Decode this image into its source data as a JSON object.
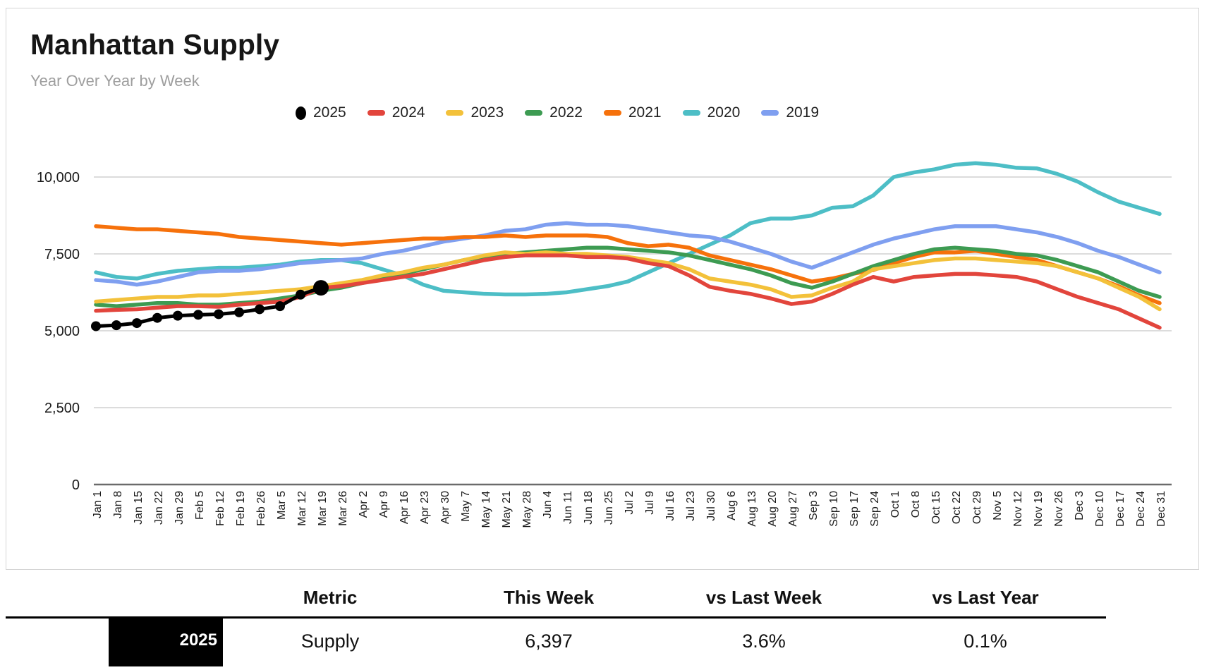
{
  "card": {
    "title": "Manhattan Supply",
    "subtitle": "Year Over Year by Week"
  },
  "chart_data": {
    "type": "line",
    "title": "Manhattan Supply",
    "subtitle": "Year Over Year by Week",
    "grid": true,
    "legend_position": "top",
    "ylim": [
      0,
      11000
    ],
    "y_ticks": [
      0,
      2500,
      5000,
      7500,
      10000
    ],
    "y_tick_labels": [
      "0",
      "2,500",
      "5,000",
      "7,500",
      "10,000"
    ],
    "x_labels": [
      "Jan 1",
      "Jan 8",
      "Jan 15",
      "Jan 22",
      "Jan 29",
      "Feb 5",
      "Feb 12",
      "Feb 19",
      "Feb 26",
      "Mar 5",
      "Mar 12",
      "Mar 19",
      "Mar 26",
      "Apr 2",
      "Apr 9",
      "Apr 16",
      "Apr 23",
      "Apr 30",
      "May 7",
      "May 14",
      "May 21",
      "May 28",
      "Jun 4",
      "Jun 11",
      "Jun 18",
      "Jun 25",
      "Jul 2",
      "Jul 9",
      "Jul 16",
      "Jul 23",
      "Jul 30",
      "Aug 6",
      "Aug 13",
      "Aug 20",
      "Aug 27",
      "Sep 3",
      "Sep 10",
      "Sep 17",
      "Sep 24",
      "Oct 1",
      "Oct 8",
      "Oct 15",
      "Oct 22",
      "Oct 29",
      "Nov 5",
      "Nov 12",
      "Nov 19",
      "Nov 26",
      "Dec 3",
      "Dec 10",
      "Dec 17",
      "Dec 24",
      "Dec 31"
    ],
    "series": [
      {
        "name": "2025",
        "color": "#000000",
        "marker": "circle",
        "values": [
          5150,
          5180,
          5250,
          5420,
          5490,
          5520,
          5540,
          5600,
          5700,
          5800,
          6175,
          6397
        ]
      },
      {
        "name": "2024",
        "color": "#e2453c",
        "values": [
          5650,
          5680,
          5700,
          5750,
          5800,
          5800,
          5780,
          5850,
          5900,
          5950,
          6100,
          6390,
          6450,
          6550,
          6650,
          6750,
          6850,
          7000,
          7150,
          7300,
          7400,
          7450,
          7450,
          7450,
          7400,
          7400,
          7350,
          7200,
          7100,
          6800,
          6430,
          6300,
          6200,
          6050,
          5870,
          5950,
          6200,
          6500,
          6750,
          6600,
          6750,
          6800,
          6850,
          6850,
          6800,
          6750,
          6600,
          6350,
          6100,
          5900,
          5700,
          5400,
          5100
        ]
      },
      {
        "name": "2023",
        "color": "#f3c13a",
        "values": [
          5950,
          6000,
          6050,
          6100,
          6100,
          6150,
          6150,
          6200,
          6250,
          6300,
          6350,
          6450,
          6550,
          6650,
          6800,
          6900,
          7050,
          7150,
          7300,
          7450,
          7550,
          7500,
          7550,
          7500,
          7500,
          7450,
          7400,
          7300,
          7200,
          7000,
          6700,
          6600,
          6500,
          6350,
          6100,
          6150,
          6400,
          6600,
          7000,
          7100,
          7200,
          7300,
          7350,
          7350,
          7300,
          7250,
          7200,
          7100,
          6900,
          6700,
          6400,
          6100,
          5700
        ]
      },
      {
        "name": "2022",
        "color": "#3d9b52",
        "values": [
          5850,
          5800,
          5850,
          5900,
          5900,
          5850,
          5850,
          5900,
          5950,
          6050,
          6150,
          6300,
          6400,
          6550,
          6700,
          6850,
          7000,
          7150,
          7300,
          7400,
          7500,
          7550,
          7600,
          7650,
          7700,
          7700,
          7650,
          7600,
          7550,
          7450,
          7300,
          7150,
          7000,
          6800,
          6550,
          6400,
          6600,
          6850,
          7100,
          7300,
          7500,
          7650,
          7700,
          7650,
          7600,
          7500,
          7450,
          7300,
          7100,
          6900,
          6600,
          6300,
          6100
        ]
      },
      {
        "name": "2021",
        "color": "#f6710b",
        "values": [
          8400,
          8350,
          8300,
          8300,
          8250,
          8200,
          8150,
          8050,
          8000,
          7950,
          7900,
          7850,
          7800,
          7850,
          7900,
          7950,
          8000,
          8000,
          8050,
          8050,
          8100,
          8050,
          8100,
          8100,
          8100,
          8050,
          7850,
          7750,
          7800,
          7700,
          7450,
          7300,
          7150,
          7000,
          6800,
          6600,
          6700,
          6850,
          6975,
          7200,
          7400,
          7550,
          7550,
          7600,
          7500,
          7400,
          7300,
          7100,
          6900,
          6700,
          6450,
          6150,
          5900
        ]
      },
      {
        "name": "2020",
        "color": "#4dbec6",
        "values": [
          6900,
          6750,
          6700,
          6850,
          6950,
          7000,
          7050,
          7050,
          7100,
          7150,
          7250,
          7300,
          7300,
          7200,
          7000,
          6800,
          6500,
          6300,
          6250,
          6200,
          6180,
          6180,
          6200,
          6250,
          6350,
          6450,
          6600,
          6900,
          7200,
          7500,
          7800,
          8100,
          8500,
          8650,
          8650,
          8750,
          9000,
          9050,
          9400,
          10000,
          10150,
          10250,
          10400,
          10450,
          10400,
          10300,
          10280,
          10100,
          9850,
          9500,
          9200,
          9000,
          8800
        ]
      },
      {
        "name": "2019",
        "color": "#7f9ff0",
        "values": [
          6650,
          6600,
          6500,
          6600,
          6750,
          6900,
          6950,
          6950,
          7000,
          7100,
          7200,
          7250,
          7300,
          7350,
          7500,
          7600,
          7750,
          7900,
          8000,
          8100,
          8250,
          8300,
          8450,
          8500,
          8450,
          8450,
          8400,
          8300,
          8200,
          8100,
          8050,
          7900,
          7700,
          7500,
          7250,
          7050,
          7300,
          7550,
          7800,
          8000,
          8150,
          8300,
          8400,
          8400,
          8400,
          8300,
          8200,
          8050,
          7850,
          7600,
          7400,
          7150,
          6900
        ]
      }
    ],
    "draw_order": [
      "2020",
      "2019",
      "2021",
      "2022",
      "2023",
      "2024",
      "2025"
    ]
  },
  "table": {
    "headers": [
      "Metric",
      "This Week",
      "vs Last Week",
      "vs Last Year"
    ],
    "rows": [
      {
        "year": "2025",
        "metric": "Supply",
        "this_week": "6,397",
        "vs_last_week": "3.6%",
        "vs_last_year": "0.1%"
      }
    ]
  }
}
